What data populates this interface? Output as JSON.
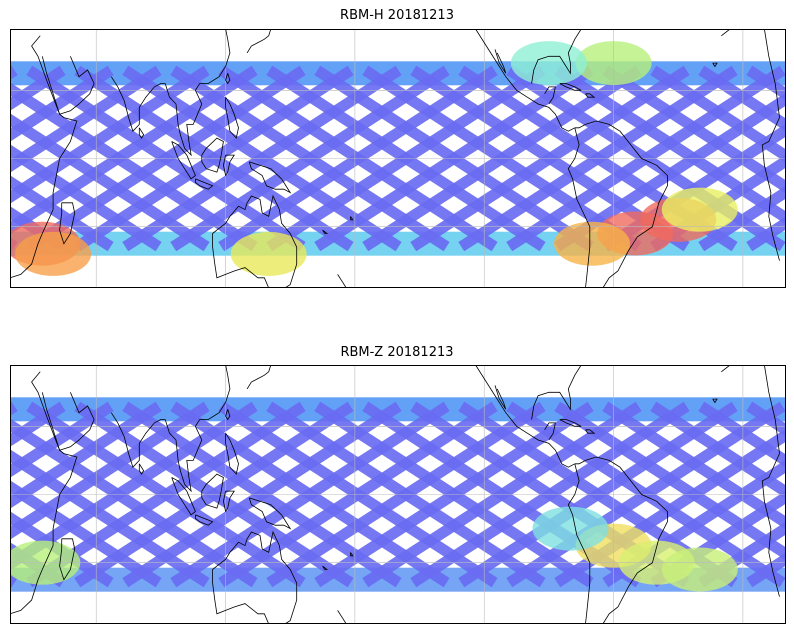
{
  "panels": [
    {
      "title": "RBM-H 20181213",
      "bands": [
        {
          "lat": 25,
          "color": "#5b9cf5"
        },
        {
          "lat": -25,
          "color": "#6fd0f0"
        }
      ],
      "hotspots": [
        {
          "lon": 35,
          "lat": -25,
          "color": "#f06a5e"
        },
        {
          "lon": 40,
          "lat": -28,
          "color": "#f7a04a"
        },
        {
          "lon": 140,
          "lat": -28,
          "color": "#e8e85a"
        },
        {
          "lon": 310,
          "lat": -22,
          "color": "#f06a5e"
        },
        {
          "lon": 290,
          "lat": -25,
          "color": "#f7b347"
        },
        {
          "lon": 330,
          "lat": -18,
          "color": "#f06a5e"
        },
        {
          "lon": 300,
          "lat": 28,
          "color": "#b6f07a"
        },
        {
          "lon": 270,
          "lat": 28,
          "color": "#8ef0d5"
        },
        {
          "lon": 340,
          "lat": -15,
          "color": "#e8f060"
        }
      ]
    },
    {
      "title": "RBM-Z 20181213",
      "bands": [
        {
          "lat": 25,
          "color": "#5b9cf5"
        },
        {
          "lat": -25,
          "color": "#6fa0f5"
        }
      ],
      "hotspots": [
        {
          "lon": 35,
          "lat": -20,
          "color": "#b6f07a"
        },
        {
          "lon": 300,
          "lat": -15,
          "color": "#f0e060"
        },
        {
          "lon": 320,
          "lat": -20,
          "color": "#d8f070"
        },
        {
          "lon": 280,
          "lat": -10,
          "color": "#80e0e0"
        },
        {
          "lon": 340,
          "lat": -22,
          "color": "#c8f078"
        }
      ]
    }
  ],
  "colors": {
    "swath": "#6a6cf2",
    "background": "#ffffff"
  }
}
